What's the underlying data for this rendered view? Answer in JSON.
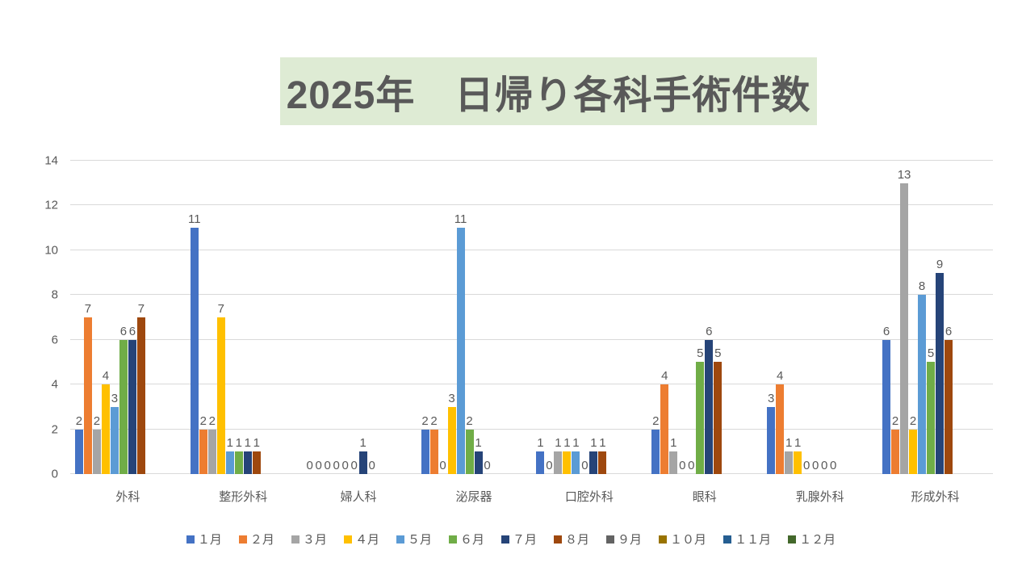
{
  "chart_data": {
    "type": "bar",
    "title": "2025年　日帰り各科手術件数",
    "categories": [
      "外科",
      "整形外科",
      "婦人科",
      "泌尿器",
      "口腔外科",
      "眼科",
      "乳腺外科",
      "形成外科"
    ],
    "series": [
      {
        "name": "１月",
        "color": "#4472C4",
        "values": [
          2,
          11,
          0,
          2,
          1,
          2,
          3,
          6
        ]
      },
      {
        "name": "２月",
        "color": "#ED7D31",
        "values": [
          7,
          2,
          0,
          2,
          0,
          4,
          4,
          2
        ]
      },
      {
        "name": "３月",
        "color": "#A5A5A5",
        "values": [
          2,
          2,
          0,
          0,
          1,
          1,
          1,
          13
        ]
      },
      {
        "name": "４月",
        "color": "#FFC000",
        "values": [
          4,
          7,
          0,
          3,
          1,
          0,
          1,
          2
        ]
      },
      {
        "name": "５月",
        "color": "#5B9BD5",
        "values": [
          3,
          1,
          0,
          11,
          1,
          0,
          0,
          8
        ]
      },
      {
        "name": "６月",
        "color": "#70AD47",
        "values": [
          6,
          1,
          0,
          2,
          0,
          5,
          0,
          5
        ]
      },
      {
        "name": "７月",
        "color": "#264478",
        "values": [
          6,
          1,
          1,
          1,
          1,
          6,
          0,
          9
        ]
      },
      {
        "name": "８月",
        "color": "#9E480E",
        "values": [
          7,
          1,
          0,
          0,
          1,
          5,
          0,
          6
        ]
      },
      {
        "name": "９月",
        "color": "#636363",
        "values": [
          null,
          null,
          null,
          null,
          null,
          null,
          null,
          null
        ]
      },
      {
        "name": "１０月",
        "color": "#997300",
        "values": [
          null,
          null,
          null,
          null,
          null,
          null,
          null,
          null
        ]
      },
      {
        "name": "１１月",
        "color": "#255E91",
        "values": [
          null,
          null,
          null,
          null,
          null,
          null,
          null,
          null
        ]
      },
      {
        "name": "１２月",
        "color": "#43682B",
        "values": [
          null,
          null,
          null,
          null,
          null,
          null,
          null,
          null
        ]
      }
    ],
    "ylim": [
      0,
      14
    ],
    "yticks": [
      0,
      2,
      4,
      6,
      8,
      10,
      12,
      14
    ],
    "grid": true,
    "legend_position": "bottom",
    "data_labels": true,
    "style": {
      "title_bg": "#DEEBD4",
      "text_color": "#595959",
      "gridline_color": "#D9D9D9",
      "background": "#FFFFFF"
    }
  }
}
